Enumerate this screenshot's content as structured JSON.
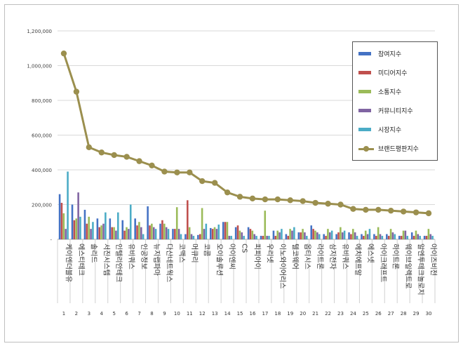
{
  "chart_data": {
    "type": "bar",
    "title": "",
    "xlabel": "",
    "ylabel": "",
    "ylim": [
      0,
      1200000
    ],
    "yticks": [
      "1,200,000",
      "1,000,000",
      "800,000",
      "600,000",
      "400,000",
      "200,000",
      "-"
    ],
    "ytick_values": [
      1200000,
      1000000,
      800000,
      600000,
      400000,
      200000,
      0
    ],
    "grid": true,
    "legend_position": "right",
    "categories": [
      "케이엔더블유",
      "에스티테크",
      "솔리드",
      "서진시스템",
      "인텔리안테크",
      "유비쿼스",
      "인공정보",
      "뉴지랩파마",
      "다산네트웍스",
      "코맥스",
      "머큐리",
      "코콤",
      "오이솔루션",
      "아이엔씨",
      "CS",
      "피피아이",
      "우리넷",
      "이노와이어리스",
      "텔코웨어",
      "옵티시스",
      "라이트론",
      "삼지전자",
      "유비쿼스",
      "에치에프알",
      "에스넷",
      "아이크래프트",
      "하이트론",
      "웨이브일렉트로",
      "알엔투테크놀로지",
      "아이즈비전"
    ],
    "category_numbers": [
      "1",
      "2",
      "3",
      "4",
      "5",
      "6",
      "7",
      "8",
      "9",
      "10",
      "11",
      "12",
      "13",
      "14",
      "15",
      "16",
      "17",
      "18",
      "19",
      "20",
      "21",
      "22",
      "23",
      "24",
      "25",
      "26",
      "27",
      "28",
      "29",
      "30"
    ],
    "series": [
      {
        "name": "참여지수",
        "kind": "bar",
        "color": "#4472c4",
        "values": [
          260000,
          200000,
          170000,
          120000,
          120000,
          110000,
          120000,
          190000,
          90000,
          60000,
          30000,
          25000,
          65000,
          100000,
          70000,
          70000,
          20000,
          50000,
          30000,
          40000,
          80000,
          30000,
          30000,
          40000,
          30000,
          30000,
          30000,
          20000,
          40000,
          20000
        ]
      },
      {
        "name": "미디어지수",
        "kind": "bar",
        "color": "#c0504d",
        "values": [
          210000,
          110000,
          90000,
          70000,
          70000,
          50000,
          80000,
          80000,
          110000,
          60000,
          225000,
          30000,
          60000,
          100000,
          80000,
          60000,
          20000,
          20000,
          20000,
          40000,
          60000,
          20000,
          40000,
          30000,
          20000,
          20000,
          20000,
          20000,
          20000,
          20000
        ]
      },
      {
        "name": "소통지수",
        "kind": "bar",
        "color": "#9bbb59",
        "values": [
          150000,
          120000,
          130000,
          80000,
          70000,
          70000,
          100000,
          90000,
          90000,
          185000,
          70000,
          180000,
          70000,
          100000,
          50000,
          50000,
          165000,
          50000,
          60000,
          60000,
          50000,
          60000,
          70000,
          60000,
          50000,
          70000,
          60000,
          50000,
          50000,
          60000
        ]
      },
      {
        "name": "커뮤니티지수",
        "kind": "bar",
        "color": "#8064a2",
        "values": [
          60000,
          270000,
          60000,
          90000,
          50000,
          60000,
          70000,
          70000,
          70000,
          60000,
          30000,
          60000,
          60000,
          20000,
          40000,
          30000,
          20000,
          40000,
          50000,
          40000,
          40000,
          40000,
          40000,
          40000,
          30000,
          30000,
          40000,
          50000,
          30000,
          30000
        ]
      },
      {
        "name": "시장지수",
        "kind": "bar",
        "color": "#4bacc6",
        "values": [
          390000,
          130000,
          100000,
          155000,
          155000,
          200000,
          30000,
          60000,
          60000,
          30000,
          20000,
          90000,
          85000,
          20000,
          20000,
          20000,
          20000,
          60000,
          70000,
          20000,
          30000,
          50000,
          50000,
          20000,
          60000,
          20000,
          30000,
          20000,
          20000,
          20000
        ]
      },
      {
        "name": "브랜드평판지수",
        "kind": "line",
        "color": "#9b8f4e",
        "values": [
          1070000,
          850000,
          530000,
          500000,
          485000,
          475000,
          450000,
          425000,
          390000,
          385000,
          385000,
          335000,
          325000,
          270000,
          245000,
          235000,
          230000,
          230000,
          225000,
          220000,
          210000,
          205000,
          200000,
          175000,
          170000,
          170000,
          165000,
          160000,
          155000,
          150000
        ]
      }
    ]
  }
}
